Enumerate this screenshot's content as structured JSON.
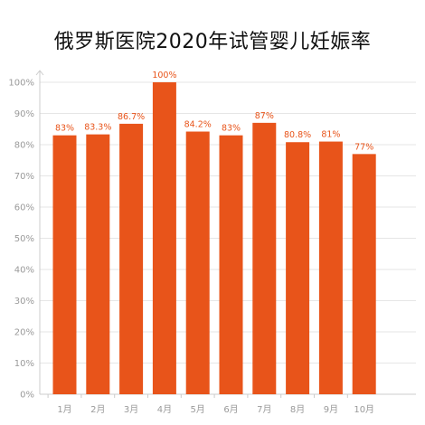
{
  "chart_data": {
    "type": "bar",
    "title": "俄罗斯医院2020年试管婴儿妊娠率",
    "xlabel": "",
    "ylabel": "",
    "categories": [
      "1月",
      "2月",
      "3月",
      "4月",
      "5月",
      "6月",
      "7月",
      "8月",
      "9月",
      "10月"
    ],
    "values": [
      83,
      83.3,
      86.7,
      100,
      84.2,
      83,
      87,
      80.8,
      81,
      77
    ],
    "data_labels": [
      "83%",
      "83.3%",
      "86.7%",
      "100%",
      "84.2%",
      "83%",
      "87%",
      "80.8%",
      "81%",
      "77%"
    ],
    "ylim": [
      0,
      100
    ],
    "y_ticks": [
      0,
      10,
      20,
      30,
      40,
      50,
      60,
      70,
      80,
      90,
      100
    ],
    "y_tick_labels": [
      "0%",
      "10%",
      "20%",
      "30%",
      "40%",
      "50%",
      "60%",
      "70%",
      "80%",
      "90%",
      "100%"
    ],
    "grid": true,
    "legend": "none",
    "colors": {
      "bar": "#e8541a",
      "grid": "#e6e6e6",
      "axis": "#cccccc"
    }
  }
}
